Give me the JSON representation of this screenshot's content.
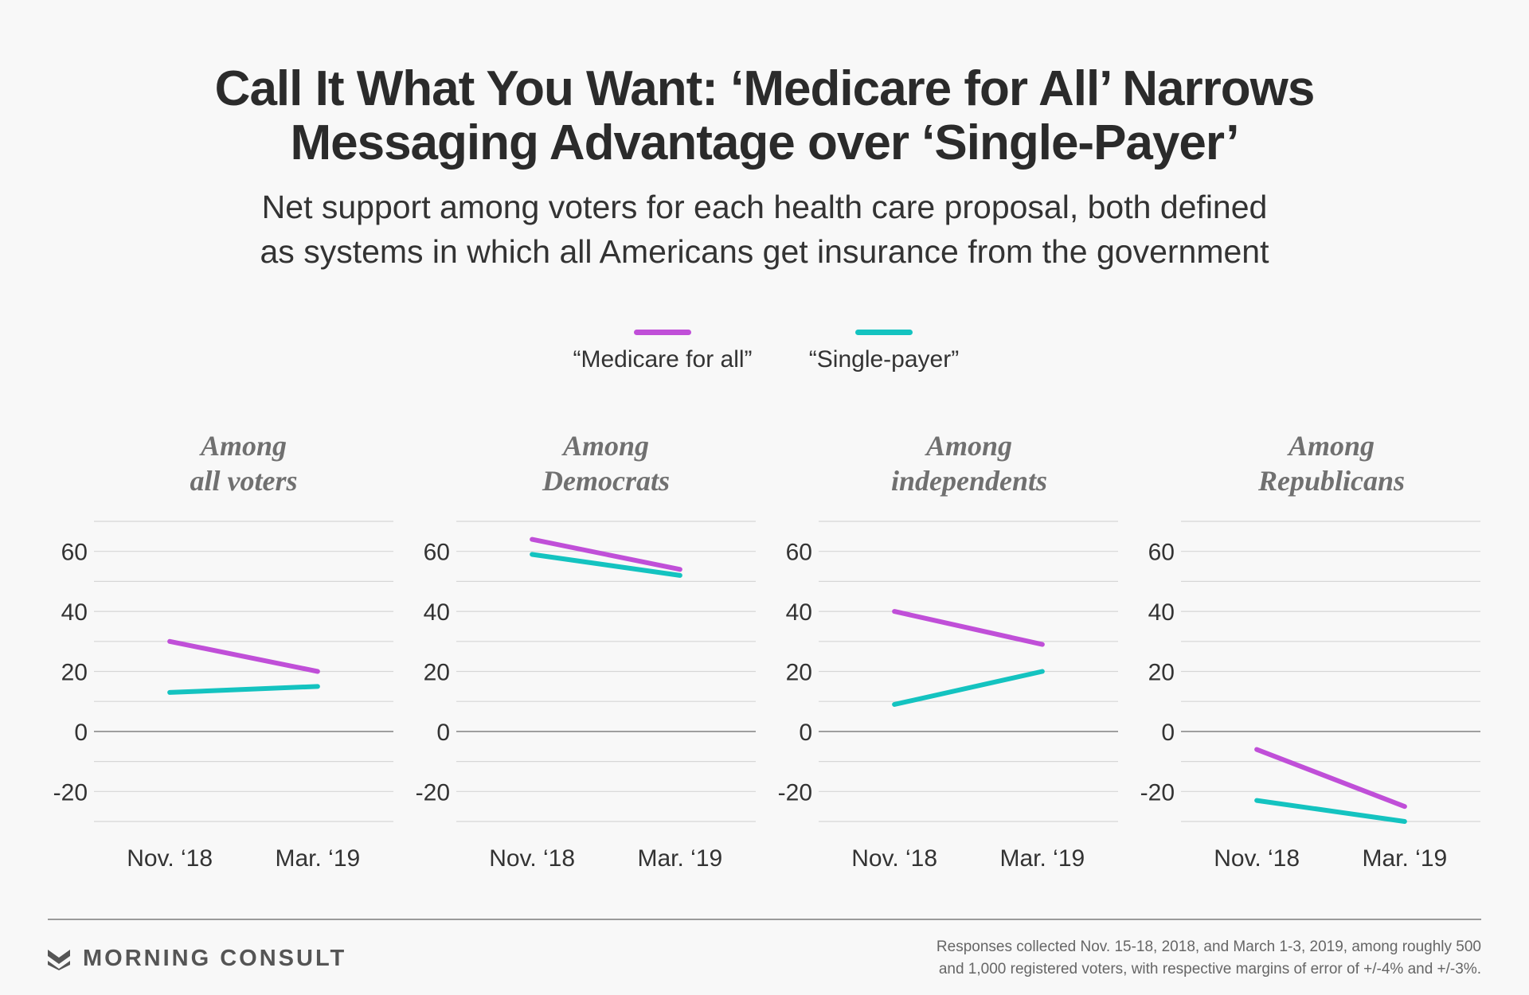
{
  "title": {
    "line1": "Call It What You Want: ‘Medicare for All’ Narrows",
    "line2": "Messaging Advantage over ‘Single-Payer’"
  },
  "subtitle": {
    "line1": "Net support among voters for each health care proposal, both defined",
    "line2": "as systems in which all Americans get insurance from the government"
  },
  "legend": [
    {
      "label": "“Medicare for all”",
      "color": "#c04fd8"
    },
    {
      "label": "“Single-payer”",
      "color": "#14c3c0"
    }
  ],
  "chart_data": {
    "type": "line",
    "ylim": [
      -30,
      70
    ],
    "yticks": [
      60,
      40,
      20,
      0,
      -20
    ],
    "ytick_labels": [
      "60",
      "40",
      "20",
      "0",
      "-20"
    ],
    "grid": true,
    "legend_position": "top-center",
    "categories": [
      "Nov. ‘18",
      "Mar. ‘19"
    ],
    "panels": [
      {
        "title_line1": "Among",
        "title_line2": "all voters",
        "series": [
          {
            "name": "“Medicare for all”",
            "values": [
              30,
              20
            ],
            "color": "#c04fd8"
          },
          {
            "name": "“Single-payer”",
            "values": [
              13,
              15
            ],
            "color": "#14c3c0"
          }
        ]
      },
      {
        "title_line1": "Among",
        "title_line2": "Democrats",
        "series": [
          {
            "name": "“Medicare for all”",
            "values": [
              64,
              54
            ],
            "color": "#c04fd8"
          },
          {
            "name": "“Single-payer”",
            "values": [
              59,
              52
            ],
            "color": "#14c3c0"
          }
        ]
      },
      {
        "title_line1": "Among",
        "title_line2": "independents",
        "series": [
          {
            "name": "“Medicare for all”",
            "values": [
              40,
              29
            ],
            "color": "#c04fd8"
          },
          {
            "name": "“Single-payer”",
            "values": [
              9,
              20
            ],
            "color": "#14c3c0"
          }
        ]
      },
      {
        "title_line1": "Among",
        "title_line2": "Republicans",
        "series": [
          {
            "name": "“Medicare for all”",
            "values": [
              -6,
              -25
            ],
            "color": "#c04fd8"
          },
          {
            "name": "“Single-payer”",
            "values": [
              -23,
              -30
            ],
            "color": "#14c3c0"
          }
        ]
      }
    ]
  },
  "footer": {
    "brand": "MORNING CONSULT",
    "note_line1": "Responses collected Nov. 15-18, 2018, and March 1-3, 2019, among roughly 500",
    "note_line2": "and 1,000 registered voters, with respective margins of error of +/-4% and +/-3%."
  }
}
